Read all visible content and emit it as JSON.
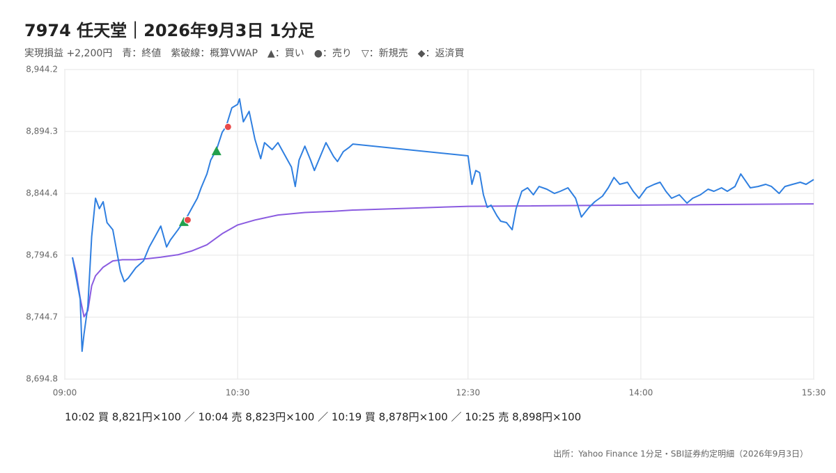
{
  "chart_data": {
    "type": "line",
    "title": "7974 任天堂｜2026年9月3日 1分足",
    "subtitle": "実現損益 +2,200円　青：終値　紫破線：概算VWAP　▲：買い　●：売り　▽：新規売　◆：返済買",
    "xlim": [
      "09:00",
      "15:30"
    ],
    "xticks": [
      "09:00",
      "10:30",
      "12:30",
      "14:00",
      "15:30"
    ],
    "ylim": [
      8694.8,
      8944.2
    ],
    "yticks": [
      {
        "value": 8694.8,
        "label": "8,694.8"
      },
      {
        "value": 8744.7,
        "label": "8,744.7"
      },
      {
        "value": 8794.6,
        "label": "8,794.6"
      },
      {
        "value": 8844.4,
        "label": "8,844.4"
      },
      {
        "value": 8894.3,
        "label": "8,894.3"
      },
      {
        "value": 8944.2,
        "label": "8,944.2"
      }
    ],
    "grid": true,
    "series": [
      {
        "color": "#2f7fe0",
        "x": [
          "09:04",
          "09:06",
          "09:08",
          "09:09",
          "09:10",
          "09:12",
          "09:14",
          "09:16",
          "09:18",
          "09:20",
          "09:22",
          "09:25",
          "09:27",
          "09:29",
          "09:31",
          "09:33",
          "09:37",
          "09:41",
          "09:44",
          "09:47",
          "09:50",
          "09:53",
          "09:55",
          "09:59",
          "10:01",
          "10:03",
          "10:06",
          "10:09",
          "10:11",
          "10:14",
          "10:16",
          "10:19",
          "10:22",
          "10:24",
          "10:27",
          "10:30",
          "10:31",
          "10:33",
          "10:36",
          "10:39",
          "10:42",
          "10:44",
          "10:48",
          "10:51",
          "10:55",
          "10:58",
          "11:00",
          "11:02",
          "11:05",
          "11:08",
          "11:10",
          "11:13",
          "11:16",
          "11:20",
          "11:22",
          "11:25",
          "11:28",
          "11:30",
          "12:30",
          "12:32",
          "12:34",
          "12:36",
          "12:38",
          "12:40",
          "12:42",
          "12:45",
          "12:47",
          "12:50",
          "12:53",
          "12:55",
          "12:58",
          "13:01",
          "13:04",
          "13:07",
          "13:11",
          "13:15",
          "13:18",
          "13:22",
          "13:26",
          "13:29",
          "13:33",
          "13:36",
          "13:40",
          "13:43",
          "13:46",
          "13:49",
          "13:53",
          "13:56",
          "13:59",
          "14:03",
          "14:07",
          "14:10",
          "14:13",
          "14:16",
          "14:20",
          "14:24",
          "14:27",
          "14:31",
          "14:35",
          "14:38",
          "14:42",
          "14:45",
          "14:49",
          "14:52",
          "14:54",
          "14:57",
          "15:01",
          "15:05",
          "15:08",
          "15:12",
          "15:15",
          "15:19",
          "15:23",
          "15:26",
          "15:30"
        ],
        "values": [
          8792.9,
          8776.1,
          8759.2,
          8717.2,
          8731.2,
          8753.6,
          8809.7,
          8840.5,
          8832.1,
          8837.7,
          8820.9,
          8815.2,
          8798.5,
          8781.7,
          8773.3,
          8776.1,
          8784.5,
          8790.1,
          8801.3,
          8809.7,
          8818.1,
          8801.3,
          8806.9,
          8815.2,
          8819.8,
          8823.7,
          8832.1,
          8840.5,
          8848.9,
          8860.1,
          8871.3,
          8879.7,
          8893.7,
          8898.2,
          8913.4,
          8916.2,
          8920.6,
          8902.1,
          8910.5,
          8888.1,
          8872.4,
          8885.3,
          8879.7,
          8885.3,
          8874.1,
          8865.7,
          8850.0,
          8871.3,
          8882.5,
          8871.3,
          8862.9,
          8874.1,
          8885.3,
          8874.1,
          8870.1,
          8878.0,
          8881.4,
          8884.2,
          8874.7,
          8851.7,
          8862.9,
          8861.2,
          8843.3,
          8833.2,
          8834.9,
          8826.5,
          8822.0,
          8820.9,
          8815.2,
          8832.1,
          8846.1,
          8848.9,
          8843.3,
          8850.0,
          8847.8,
          8844.4,
          8846.1,
          8848.9,
          8840.5,
          8825.4,
          8833.2,
          8837.7,
          8842.2,
          8848.9,
          8857.3,
          8851.7,
          8853.4,
          8846.1,
          8840.5,
          8848.9,
          8851.7,
          8853.4,
          8846.1,
          8840.5,
          8843.3,
          8836.6,
          8840.5,
          8843.3,
          8847.8,
          8846.1,
          8848.9,
          8846.1,
          8850.0,
          8860.1,
          8855.6,
          8848.9,
          8850.0,
          8851.7,
          8850.0,
          8844.4,
          8850.0,
          8851.7,
          8853.4,
          8851.7,
          8855.6
        ]
      },
      {
        "color": "#8a5be0",
        "x": [
          "09:04",
          "09:06",
          "09:08",
          "09:10",
          "09:12",
          "09:14",
          "09:16",
          "09:20",
          "09:25",
          "09:30",
          "09:37",
          "09:44",
          "09:50",
          "09:59",
          "10:06",
          "10:14",
          "10:22",
          "10:30",
          "10:39",
          "10:51",
          "11:05",
          "11:20",
          "11:30",
          "12:30",
          "15:30"
        ],
        "values": [
          8792.9,
          8780.0,
          8760.0,
          8745.0,
          8750.0,
          8770.0,
          8778.0,
          8785.0,
          8790.0,
          8791.0,
          8791.0,
          8792.0,
          8793.0,
          8795.0,
          8798.0,
          8803.0,
          8812.0,
          8819.0,
          8823.0,
          8827.0,
          8829.0,
          8830.0,
          8831.0,
          8834.0,
          8836.0
        ]
      }
    ],
    "trades": {
      "x": [
        "10:02",
        "10:04",
        "10:19",
        "10:25"
      ],
      "values": [
        8821,
        8823,
        8878,
        8898
      ],
      "sides": [
        "買",
        "売",
        "買",
        "売"
      ]
    },
    "markers": {
      "買": {
        "shape": "triangle",
        "color": "#23a04d"
      },
      "売": {
        "shape": "circle",
        "color": "#e84a4a"
      }
    },
    "note": "10:02 買 8,821円×100 ／ 10:04 売 8,823円×100 ／ 10:19 買 8,878円×100 ／ 10:25 売 8,898円×100",
    "source": "出所：Yahoo Finance 1分足・SBI証券約定明細（2026年9月3日）"
  }
}
